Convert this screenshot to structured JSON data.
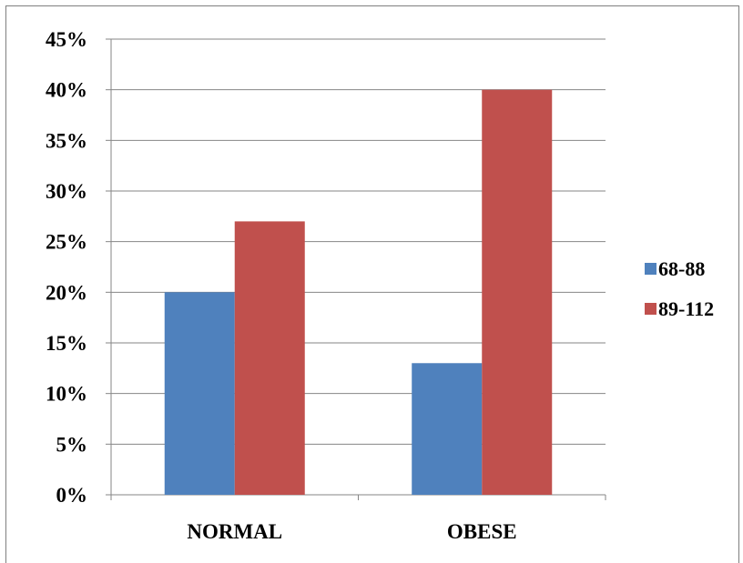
{
  "chart_data": {
    "type": "bar",
    "title": "",
    "xlabel": "",
    "ylabel": "",
    "categories": [
      "NORMAL",
      "OBESE"
    ],
    "series": [
      {
        "name": "68-88",
        "values": [
          20,
          13
        ],
        "color": "#4F81BD"
      },
      {
        "name": "89-112",
        "values": [
          27,
          40
        ],
        "color": "#C0504D"
      }
    ],
    "ylim": [
      0,
      45
    ],
    "yticks": [
      0,
      5,
      10,
      15,
      20,
      25,
      30,
      35,
      40,
      45
    ],
    "ytick_format": "percent",
    "grid": true,
    "legend_position": "right"
  }
}
